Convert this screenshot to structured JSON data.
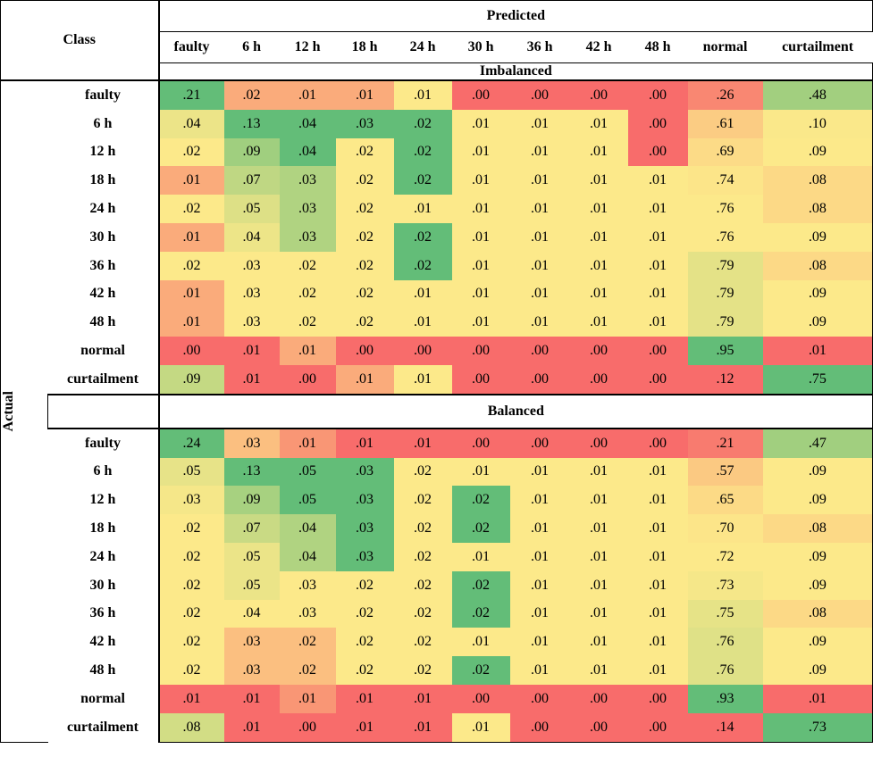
{
  "header": {
    "class_label": "Class",
    "predicted_label": "Predicted",
    "columns": [
      "faulty",
      "6 h",
      "12 h",
      "18 h",
      "24 h",
      "30 h",
      "36 h",
      "42 h",
      "48 h",
      "normal",
      "curtailment"
    ]
  },
  "actual_label": "Actual",
  "sections": [
    {
      "title": "Imbalanced",
      "rows": [
        {
          "label": "faulty",
          "cells": [
            ".21",
            ".02",
            ".01",
            ".01",
            ".01",
            ".00",
            ".00",
            ".00",
            ".00",
            ".26",
            ".48"
          ]
        },
        {
          "label": "6 h",
          "cells": [
            ".04",
            ".13",
            ".04",
            ".03",
            ".02",
            ".01",
            ".01",
            ".01",
            ".00",
            ".61",
            ".10"
          ]
        },
        {
          "label": "12 h",
          "cells": [
            ".02",
            ".09",
            ".04",
            ".02",
            ".02",
            ".01",
            ".01",
            ".01",
            ".00",
            ".69",
            ".09"
          ]
        },
        {
          "label": "18 h",
          "cells": [
            ".01",
            ".07",
            ".03",
            ".02",
            ".02",
            ".01",
            ".01",
            ".01",
            ".01",
            ".74",
            ".08"
          ]
        },
        {
          "label": "24 h",
          "cells": [
            ".02",
            ".05",
            ".03",
            ".02",
            ".01",
            ".01",
            ".01",
            ".01",
            ".01",
            ".76",
            ".08"
          ]
        },
        {
          "label": "30 h",
          "cells": [
            ".01",
            ".04",
            ".03",
            ".02",
            ".02",
            ".01",
            ".01",
            ".01",
            ".01",
            ".76",
            ".09"
          ]
        },
        {
          "label": "36 h",
          "cells": [
            ".02",
            ".03",
            ".02",
            ".02",
            ".02",
            ".01",
            ".01",
            ".01",
            ".01",
            ".79",
            ".08"
          ]
        },
        {
          "label": "42 h",
          "cells": [
            ".01",
            ".03",
            ".02",
            ".02",
            ".01",
            ".01",
            ".01",
            ".01",
            ".01",
            ".79",
            ".09"
          ]
        },
        {
          "label": "48 h",
          "cells": [
            ".01",
            ".03",
            ".02",
            ".02",
            ".01",
            ".01",
            ".01",
            ".01",
            ".01",
            ".79",
            ".09"
          ]
        },
        {
          "label": "normal",
          "cells": [
            ".00",
            ".01",
            ".01",
            ".00",
            ".00",
            ".00",
            ".00",
            ".00",
            ".00",
            ".95",
            ".01"
          ]
        },
        {
          "label": "curtailment",
          "cells": [
            ".09",
            ".01",
            ".00",
            ".01",
            ".01",
            ".00",
            ".00",
            ".00",
            ".00",
            ".12",
            ".75"
          ]
        }
      ]
    },
    {
      "title": "Balanced",
      "rows": [
        {
          "label": "faulty",
          "cells": [
            ".24",
            ".03",
            ".01",
            ".01",
            ".01",
            ".00",
            ".00",
            ".00",
            ".00",
            ".21",
            ".47"
          ]
        },
        {
          "label": "6 h",
          "cells": [
            ".05",
            ".13",
            ".05",
            ".03",
            ".02",
            ".01",
            ".01",
            ".01",
            ".01",
            ".57",
            ".09"
          ]
        },
        {
          "label": "12 h",
          "cells": [
            ".03",
            ".09",
            ".05",
            ".03",
            ".02",
            ".02",
            ".01",
            ".01",
            ".01",
            ".65",
            ".09"
          ]
        },
        {
          "label": "18 h",
          "cells": [
            ".02",
            ".07",
            ".04",
            ".03",
            ".02",
            ".02",
            ".01",
            ".01",
            ".01",
            ".70",
            ".08"
          ]
        },
        {
          "label": "24 h",
          "cells": [
            ".02",
            ".05",
            ".04",
            ".03",
            ".02",
            ".01",
            ".01",
            ".01",
            ".01",
            ".72",
            ".09"
          ]
        },
        {
          "label": "30 h",
          "cells": [
            ".02",
            ".05",
            ".03",
            ".02",
            ".02",
            ".02",
            ".01",
            ".01",
            ".01",
            ".73",
            ".09"
          ]
        },
        {
          "label": "36 h",
          "cells": [
            ".02",
            ".04",
            ".03",
            ".02",
            ".02",
            ".02",
            ".01",
            ".01",
            ".01",
            ".75",
            ".08"
          ]
        },
        {
          "label": "42 h",
          "cells": [
            ".02",
            ".03",
            ".02",
            ".02",
            ".02",
            ".01",
            ".01",
            ".01",
            ".01",
            ".76",
            ".09"
          ]
        },
        {
          "label": "48 h",
          "cells": [
            ".02",
            ".03",
            ".02",
            ".02",
            ".02",
            ".02",
            ".01",
            ".01",
            ".01",
            ".76",
            ".09"
          ]
        },
        {
          "label": "normal",
          "cells": [
            ".01",
            ".01",
            ".01",
            ".01",
            ".01",
            ".00",
            ".00",
            ".00",
            ".00",
            ".93",
            ".01"
          ]
        },
        {
          "label": "curtailment",
          "cells": [
            ".08",
            ".01",
            ".00",
            ".01",
            ".01",
            ".01",
            ".00",
            ".00",
            ".00",
            ".14",
            ".73"
          ]
        }
      ]
    }
  ]
}
